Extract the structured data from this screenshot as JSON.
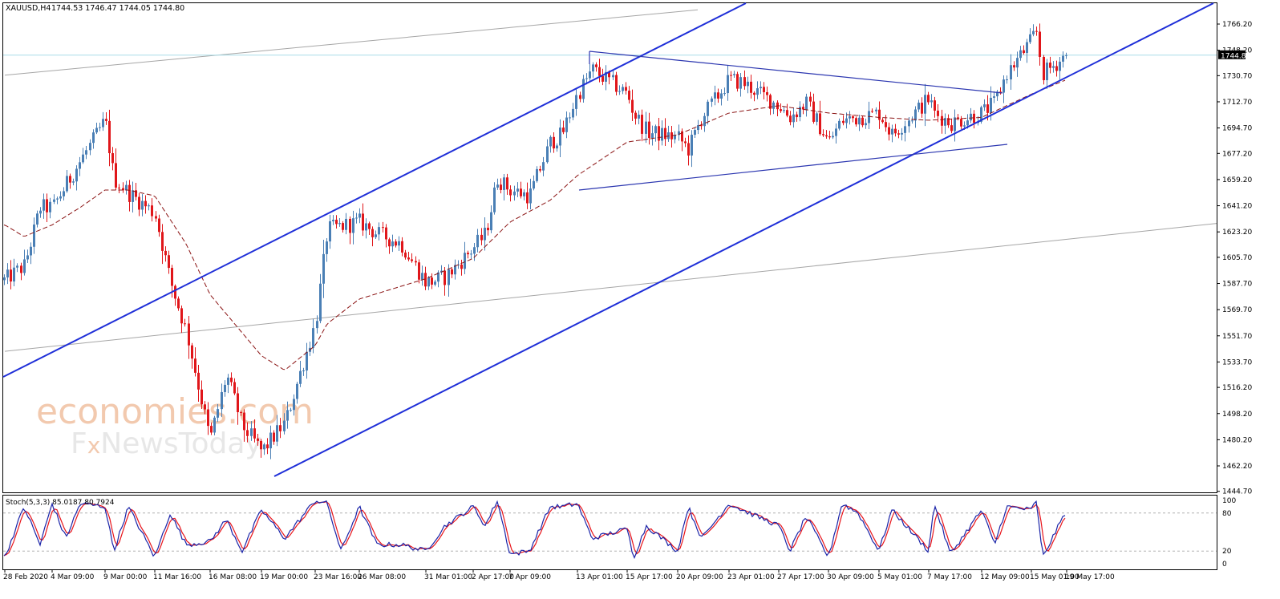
{
  "header": {
    "symbol_text": "XAUUSD,H4",
    "ohlc_text": "1744.53 1746.47 1744.05 1744.80"
  },
  "current_price_label": "1744.80",
  "watermark": {
    "line1": "economies.com",
    "line2_left": "F",
    "line2_x": "x",
    "line2_right": "NewsToday"
  },
  "colors": {
    "up_candle": "#4a7fb5",
    "down_candle": "#e0161a",
    "channel_line": "#1f2fd8",
    "triangle_line": "#2b36b0",
    "moving_average": "#8b1414",
    "stoch_main": "#1a23a8",
    "stoch_signal": "#e8141a",
    "current_price_line": "#a8dde8",
    "grey_lines": "#a6a6a6",
    "watermark": "#f2c9ae"
  },
  "price_axis": {
    "ticks": [
      "1766.20",
      "1748.20",
      "1730.70",
      "1712.70",
      "1694.70",
      "1677.20",
      "1659.20",
      "1641.20",
      "1623.20",
      "1605.70",
      "1587.70",
      "1569.70",
      "1551.70",
      "1533.70",
      "1516.20",
      "1498.20",
      "1480.20",
      "1462.20",
      "1444.70"
    ]
  },
  "time_axis": {
    "ticks": [
      "28 Feb 2020",
      "4 Mar 09:00",
      "9 Mar 00:00",
      "11 Mar 16:00",
      "16 Mar 08:00",
      "19 Mar 00:00",
      "23 Mar 16:00",
      "26 Mar 08:00",
      "31 Mar 01:00",
      "2 Apr 17:00",
      "7 Apr 09:00",
      "13 Apr 01:00",
      "15 Apr 17:00",
      "20 Apr 09:00",
      "23 Apr 01:00",
      "27 Apr 17:00",
      "30 Apr 09:00",
      "5 May 01:00",
      "7 May 17:00",
      "12 May 09:00",
      "15 May 01:00",
      "19 May 17:00"
    ]
  },
  "stoch_panel": {
    "label": "Stoch(5,3,3) 85.0187 80.7924",
    "ticks": [
      "100",
      "80",
      "20",
      "0"
    ]
  },
  "chart_data": {
    "type": "candlestick",
    "symbol": "XAUUSD",
    "timeframe": "H4",
    "last_bar": {
      "open": 1744.53,
      "high": 1746.47,
      "low": 1744.05,
      "close": 1744.8
    },
    "current_price": 1744.8,
    "ylim": [
      1444.7,
      1775
    ],
    "grid": false,
    "price_anchors": [
      [
        "28 Feb 2020",
        1590
      ],
      [
        "2 Mar",
        1600
      ],
      [
        "3 Mar",
        1640
      ],
      [
        "4 Mar 09:00",
        1640
      ],
      [
        "6 Mar",
        1672
      ],
      [
        "9 Mar 00:00",
        1700
      ],
      [
        "9 Mar 16:00",
        1660
      ],
      [
        "10 Mar",
        1650
      ],
      [
        "11 Mar 16:00",
        1636
      ],
      [
        "12 Mar",
        1590
      ],
      [
        "13 Mar",
        1555
      ],
      [
        "16 Mar 08:00",
        1480
      ],
      [
        "17 Mar",
        1525
      ],
      [
        "18 Mar",
        1490
      ],
      [
        "19 Mar 00:00",
        1472
      ],
      [
        "20 Mar",
        1492
      ],
      [
        "23 Mar 16:00",
        1560
      ],
      [
        "24 Mar",
        1625
      ],
      [
        "26 Mar 08:00",
        1630
      ],
      [
        "27 Mar",
        1622
      ],
      [
        "30 Mar",
        1615
      ],
      [
        "31 Mar 01:00",
        1588
      ],
      [
        "1 Apr",
        1592
      ],
      [
        "2 Apr 17:00",
        1612
      ],
      [
        "3 Apr",
        1622
      ],
      [
        "6 Apr",
        1660
      ],
      [
        "7 Apr 09:00",
        1652
      ],
      [
        "8 Apr",
        1648
      ],
      [
        "9 Apr",
        1685
      ],
      [
        "10 Apr",
        1690
      ],
      [
        "13 Apr 01:00",
        1718
      ],
      [
        "14 Apr",
        1735
      ],
      [
        "15 Apr 17:00",
        1718
      ],
      [
        "16 Apr",
        1705
      ],
      [
        "17 Apr",
        1692
      ],
      [
        "20 Apr 09:00",
        1688
      ],
      [
        "21 Apr",
        1680
      ],
      [
        "22 Apr",
        1702
      ],
      [
        "23 Apr 01:00",
        1728
      ],
      [
        "24 Apr",
        1726
      ],
      [
        "27 Apr 17:00",
        1710
      ],
      [
        "28 Apr",
        1702
      ],
      [
        "29 Apr",
        1712
      ],
      [
        "30 Apr 09:00",
        1685
      ],
      [
        "1 May",
        1700
      ],
      [
        "4 May",
        1702
      ],
      [
        "5 May 01:00",
        1705
      ],
      [
        "6 May",
        1690
      ],
      [
        "7 May 17:00",
        1715
      ],
      [
        "8 May",
        1705
      ],
      [
        "11 May",
        1698
      ],
      [
        "12 May 09:00",
        1705
      ],
      [
        "13 May",
        1712
      ],
      [
        "14 May",
        1732
      ],
      [
        "15 May 01:00",
        1755
      ],
      [
        "15 May 12:00",
        1762
      ],
      [
        "18 May",
        1732
      ],
      [
        "19 May 17:00",
        1744.8
      ]
    ],
    "moving_average_anchors": [
      [
        "28 Feb 2020",
        1628
      ],
      [
        "2 Mar",
        1620
      ],
      [
        "4 Mar 09:00",
        1628
      ],
      [
        "6 Mar",
        1640
      ],
      [
        "9 Mar 00:00",
        1652
      ],
      [
        "10 Mar",
        1652
      ],
      [
        "11 Mar 16:00",
        1648
      ],
      [
        "13 Mar",
        1615
      ],
      [
        "16 Mar 08:00",
        1580
      ],
      [
        "19 Mar 00:00",
        1538
      ],
      [
        "20 Mar",
        1528
      ],
      [
        "23 Mar 16:00",
        1545
      ],
      [
        "24 Mar",
        1560
      ],
      [
        "26 Mar 08:00",
        1577
      ],
      [
        "31 Mar 01:00",
        1591
      ],
      [
        "2 Apr 17:00",
        1605
      ],
      [
        "7 Apr 09:00",
        1630
      ],
      [
        "9 Apr",
        1645
      ],
      [
        "13 Apr 01:00",
        1662
      ],
      [
        "15 Apr 17:00",
        1685
      ],
      [
        "20 Apr 09:00",
        1690
      ],
      [
        "23 Apr 01:00",
        1705
      ],
      [
        "27 Apr 17:00",
        1710
      ],
      [
        "30 Apr 09:00",
        1705
      ],
      [
        "5 May 01:00",
        1702
      ],
      [
        "7 May 17:00",
        1700
      ],
      [
        "12 May 09:00",
        1702
      ],
      [
        "15 May 01:00",
        1718
      ],
      [
        "19 May 17:00",
        1728
      ]
    ],
    "trend_lines": [
      {
        "role": "channel-upper",
        "from": [
          "28 Feb 2020",
          1530
        ],
        "to": [
          "15 Apr 17:00",
          1776
        ]
      },
      {
        "role": "channel-lower",
        "from": [
          "19 Mar 00:00",
          1455
        ],
        "to": [
          "19 May 17:00",
          1776
        ]
      },
      {
        "role": "triangle-upper",
        "from": [
          "13 Apr 01:00",
          1748
        ],
        "to": [
          "14 May",
          1721
        ]
      },
      {
        "role": "triangle-lower",
        "from": [
          "13 Apr 01:00",
          1664
        ],
        "to": [
          "14 May",
          1683
        ]
      },
      {
        "role": "grey-upper",
        "from": [
          "28 Feb 2020",
          1731
        ],
        "to": [
          "23 Apr 01:00",
          1776
        ]
      },
      {
        "role": "grey-lower",
        "from": [
          "28 Feb 2020",
          1541
        ],
        "to": [
          "19 May 17:00",
          1629
        ]
      }
    ],
    "stochastic": {
      "k_period": 5,
      "d_period": 3,
      "slowing": 3,
      "main_last": 85.0187,
      "signal_last": 80.7924,
      "levels": [
        20,
        80
      ],
      "ylim": [
        0,
        100
      ],
      "main_anchors": [
        [
          "28 Feb 2020",
          10
        ],
        [
          "2 Mar",
          90
        ],
        [
          "3 Mar",
          30
        ],
        [
          "4 Mar 09:00",
          95
        ],
        [
          "5 Mar",
          40
        ],
        [
          "6 Mar",
          95
        ],
        [
          "9 Mar 00:00",
          90
        ],
        [
          "9 Mar 16:00",
          20
        ],
        [
          "10 Mar",
          90
        ],
        [
          "11 Mar 16:00",
          10
        ],
        [
          "12 Mar",
          80
        ],
        [
          "13 Mar",
          30
        ],
        [
          "16 Mar 08:00",
          35
        ],
        [
          "17 Mar",
          70
        ],
        [
          "18 Mar",
          20
        ],
        [
          "19 Mar 00:00",
          85
        ],
        [
          "20 Mar",
          40
        ],
        [
          "23 Mar 16:00",
          100
        ],
        [
          "24 Mar",
          95
        ],
        [
          "25 Mar",
          20
        ],
        [
          "26 Mar 08:00",
          90
        ],
        [
          "27 Mar",
          30
        ],
        [
          "30 Mar",
          30
        ],
        [
          "31 Mar 01:00",
          20
        ],
        [
          "1 Apr",
          60
        ],
        [
          "2 Apr 17:00",
          90
        ],
        [
          "3 Apr",
          60
        ],
        [
          "6 Apr",
          100
        ],
        [
          "7 Apr 09:00",
          15
        ],
        [
          "8 Apr",
          20
        ],
        [
          "9 Apr",
          90
        ],
        [
          "10 Apr",
          90
        ],
        [
          "13 Apr 01:00",
          95
        ],
        [
          "14 Apr",
          40
        ],
        [
          "15 Apr 17:00",
          55
        ],
        [
          "16 Apr",
          10
        ],
        [
          "17 Apr",
          60
        ],
        [
          "20 Apr 09:00",
          20
        ],
        [
          "21 Apr",
          90
        ],
        [
          "22 Apr",
          40
        ],
        [
          "23 Apr 01:00",
          95
        ],
        [
          "24 Apr",
          85
        ],
        [
          "27 Apr 17:00",
          60
        ],
        [
          "28 Apr",
          20
        ],
        [
          "29 Apr",
          75
        ],
        [
          "30 Apr 09:00",
          10
        ],
        [
          "1 May",
          95
        ],
        [
          "4 May",
          80
        ],
        [
          "5 May 01:00",
          20
        ],
        [
          "6 May",
          85
        ],
        [
          "7 May 17:00",
          20
        ],
        [
          "8 May",
          95
        ],
        [
          "11 May",
          15
        ],
        [
          "12 May 09:00",
          85
        ],
        [
          "13 May",
          30
        ],
        [
          "14 May",
          90
        ],
        [
          "15 May 01:00",
          85
        ],
        [
          "15 May 12:00",
          100
        ],
        [
          "18 May",
          10
        ],
        [
          "19 May 17:00",
          85.0187
        ]
      ]
    }
  }
}
